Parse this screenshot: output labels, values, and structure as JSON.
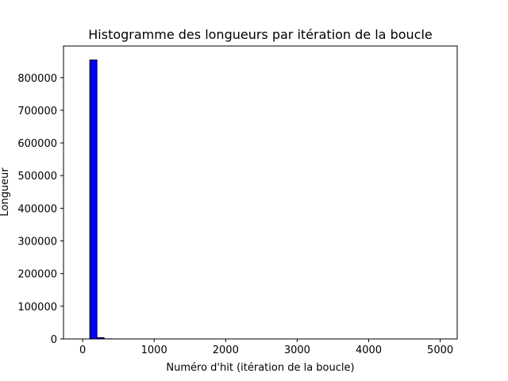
{
  "chart_data": {
    "type": "bar",
    "title": "Histogramme des longueurs par itération de la boucle",
    "xlabel": "Numéro d'hit (itération de la boucle)",
    "ylabel": "Longueur",
    "xlim": [
      -267.5,
      5237.5
    ],
    "ylim": [
      0,
      896700
    ],
    "xticks": [
      0,
      1000,
      2000,
      3000,
      4000,
      5000
    ],
    "yticks": [
      0,
      100000,
      200000,
      300000,
      400000,
      500000,
      600000,
      700000,
      800000
    ],
    "bar_color": "#0000ff",
    "edge_color": "#000000",
    "bin_width": 100,
    "bins": [
      {
        "x0": 100,
        "x1": 200,
        "value": 854000
      },
      {
        "x0": 200,
        "x1": 300,
        "value": 4000
      },
      {
        "x0": 300,
        "x1": 400,
        "value": 300
      },
      {
        "x0": 400,
        "x1": 500,
        "value": 100
      }
    ],
    "grid": false,
    "legend": "none"
  }
}
